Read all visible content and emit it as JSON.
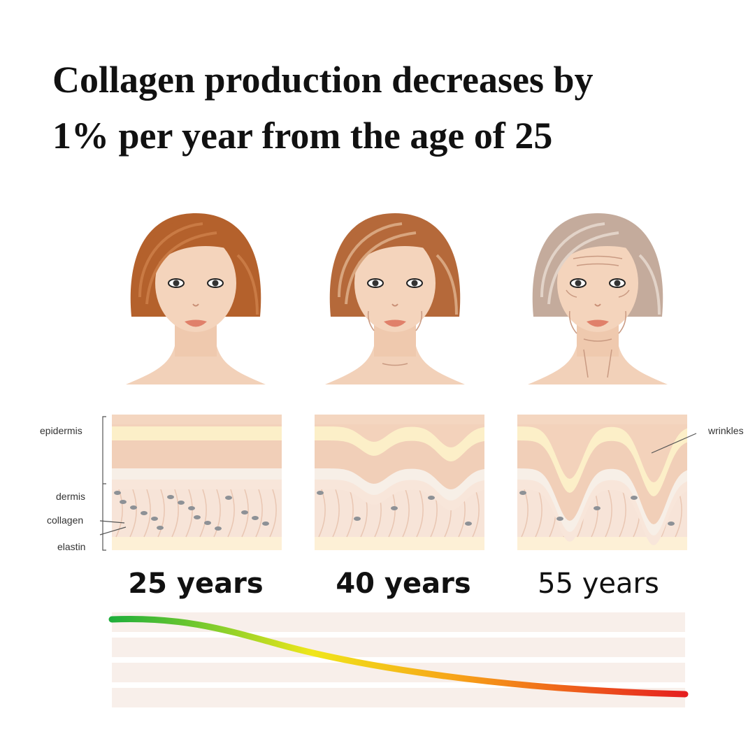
{
  "title_lines": [
    "Collagen production decreases by",
    "1% per year from the age of 25"
  ],
  "skin_labels": {
    "epidermis": "epidermis",
    "dermis": "dermis",
    "collagen": "collagen",
    "elastin": "elastin",
    "wrinkles": "wrinkles"
  },
  "ages": [
    "25 years",
    "40 years",
    "55 years"
  ]
}
